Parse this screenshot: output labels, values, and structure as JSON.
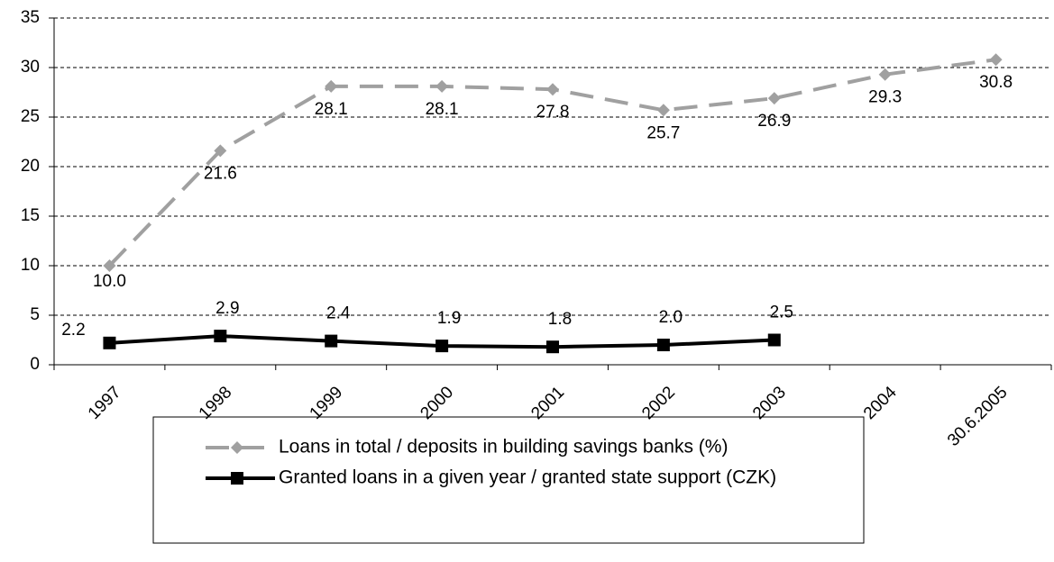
{
  "chart_data": {
    "type": "line",
    "categories": [
      "1997",
      "1998",
      "1999",
      "2000",
      "2001",
      "2002",
      "2003",
      "2004",
      "30.6.2005"
    ],
    "series": [
      {
        "name": "Loans in total / deposits in building savings banks (%)",
        "color": "#a0a0a0",
        "marker": "diamond",
        "dash": true,
        "values": [
          10.0,
          21.6,
          28.1,
          28.1,
          27.8,
          25.7,
          26.9,
          29.3,
          30.8
        ],
        "value_labels": [
          "10.0",
          "21.6",
          "28.1",
          "28.1",
          "27.8",
          "25.7",
          "26.9",
          "29.3",
          "30.8"
        ]
      },
      {
        "name": "Granted loans in a given year / granted state support (CZK)",
        "color": "#000000",
        "marker": "square",
        "dash": false,
        "values": [
          2.2,
          2.9,
          2.4,
          1.9,
          1.8,
          2.0,
          2.5,
          null,
          null
        ],
        "value_labels": [
          "2.2",
          "2.9",
          "2.4",
          "1.9",
          "1.8",
          "2.0",
          "2.5",
          null,
          null
        ]
      }
    ],
    "ylim": [
      0,
      35
    ],
    "yticks": [
      0,
      5,
      10,
      15,
      20,
      25,
      30,
      35
    ],
    "grid": true
  }
}
